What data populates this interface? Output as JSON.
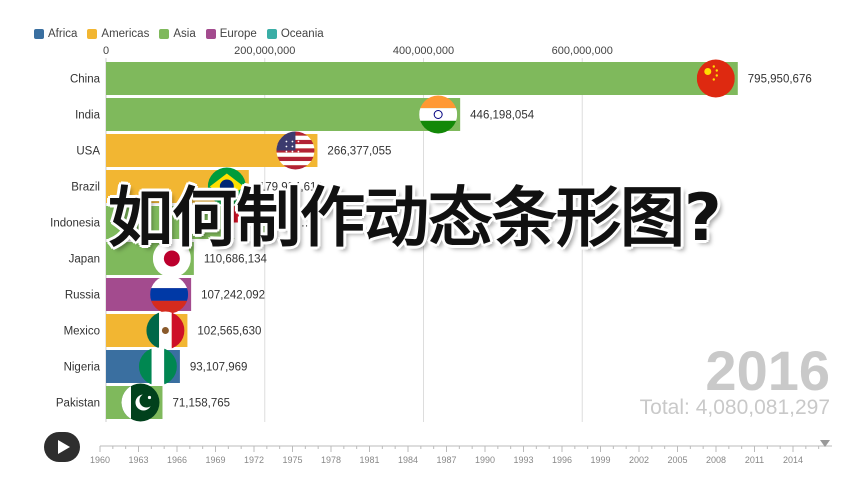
{
  "legend": [
    {
      "name": "Africa",
      "color": "#3a6fa0"
    },
    {
      "name": "Americas",
      "color": "#f2b632"
    },
    {
      "name": "Asia",
      "color": "#7fb95c"
    },
    {
      "name": "Europe",
      "color": "#a34b8e"
    },
    {
      "name": "Oceania",
      "color": "#3aaea6"
    }
  ],
  "headline": "如何制作动态条形图?",
  "year": "2016",
  "total": "Total: 4,080,081,297",
  "timeline": {
    "years": [
      "1960",
      "1963",
      "1966",
      "1969",
      "1972",
      "1975",
      "1978",
      "1981",
      "1984",
      "1987",
      "1990",
      "1993",
      "1996",
      "1999",
      "2002",
      "2005",
      "2008",
      "2011",
      "2014"
    ]
  },
  "chart_data": {
    "type": "bar",
    "orientation": "horizontal",
    "xlim": [
      0,
      800000000
    ],
    "xticks": [
      0,
      200000000,
      400000000,
      600000000
    ],
    "xtick_labels": [
      "0",
      "200,000,000",
      "400,000,000",
      "600,000,000"
    ],
    "grid": true,
    "categories": [
      "China",
      "India",
      "USA",
      "Brazil",
      "Indonesia",
      "Japan",
      "Russia",
      "Mexico",
      "Nigeria",
      "Pakistan"
    ],
    "values": [
      795950676,
      446198054,
      266377055,
      179934613,
      null,
      110686134,
      107242092,
      102565630,
      93107969,
      71158765
    ],
    "value_labels": [
      "795,950,676",
      "446,198,054",
      "266,377,055",
      "179,934,613",
      "…3,…",
      "110,686,134",
      "107,242,092",
      "102,565,630",
      "93,107,969",
      "71,158,765"
    ],
    "regions": [
      "Asia",
      "Asia",
      "Americas",
      "Americas",
      "Asia",
      "Asia",
      "Europe",
      "Americas",
      "Africa",
      "Asia"
    ],
    "flags": [
      "china-flag-icon",
      "india-flag-icon",
      "usa-flag-icon",
      "brazil-flag-icon",
      "indonesia-flag-icon",
      "japan-flag-icon",
      "russia-flag-icon",
      "mexico-flag-icon",
      "nigeria-flag-icon",
      "pakistan-flag-icon"
    ]
  }
}
